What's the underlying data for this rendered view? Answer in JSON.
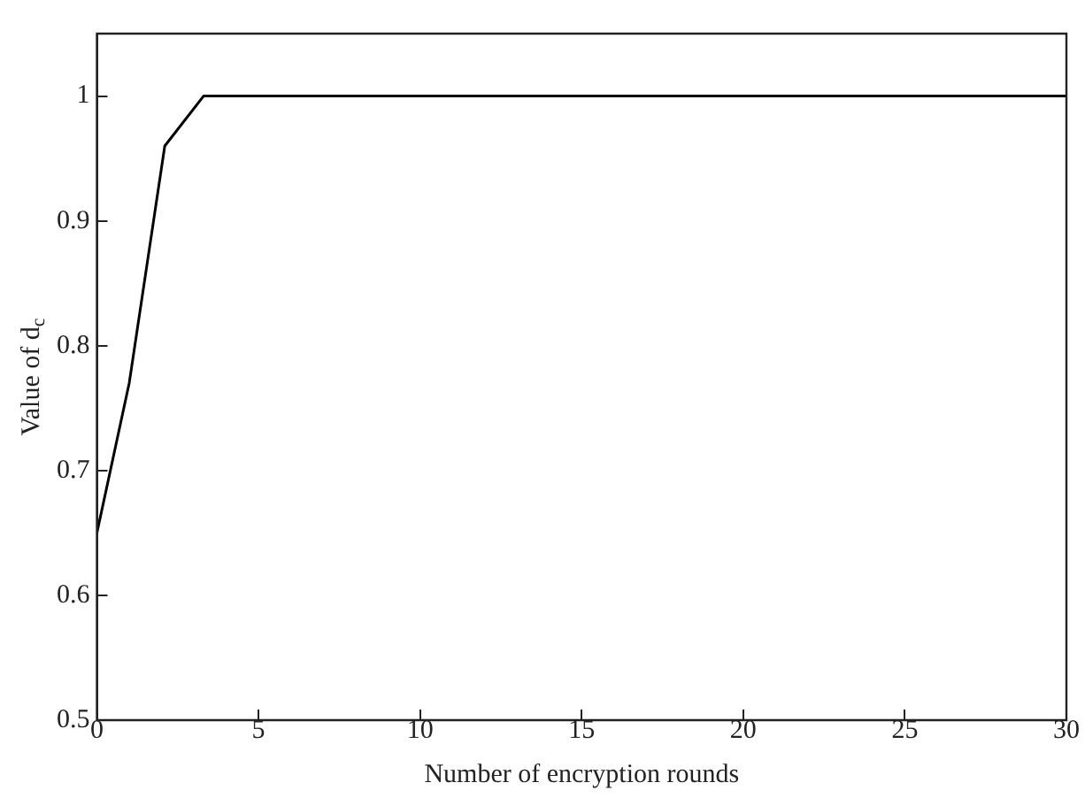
{
  "chart_data": {
    "type": "line",
    "xlabel": "Number of encryption rounds",
    "ylabel": "Value of d$_{c}$",
    "x": [
      0,
      1,
      2.1,
      3.3,
      30
    ],
    "series": [
      {
        "color": "#000000",
        "values": [
          0.65,
          0.77,
          0.96,
          1.0,
          1.0
        ]
      }
    ],
    "xlim": [
      0,
      30
    ],
    "xticks": [
      0,
      5,
      10,
      15,
      20,
      25,
      30
    ],
    "ylim": [
      0.5,
      1.05
    ],
    "yticks": [
      0.5,
      0.6,
      0.7,
      0.8,
      0.9,
      1
    ],
    "grid": false,
    "legend": false,
    "marker": "none",
    "line_style": "solid"
  }
}
